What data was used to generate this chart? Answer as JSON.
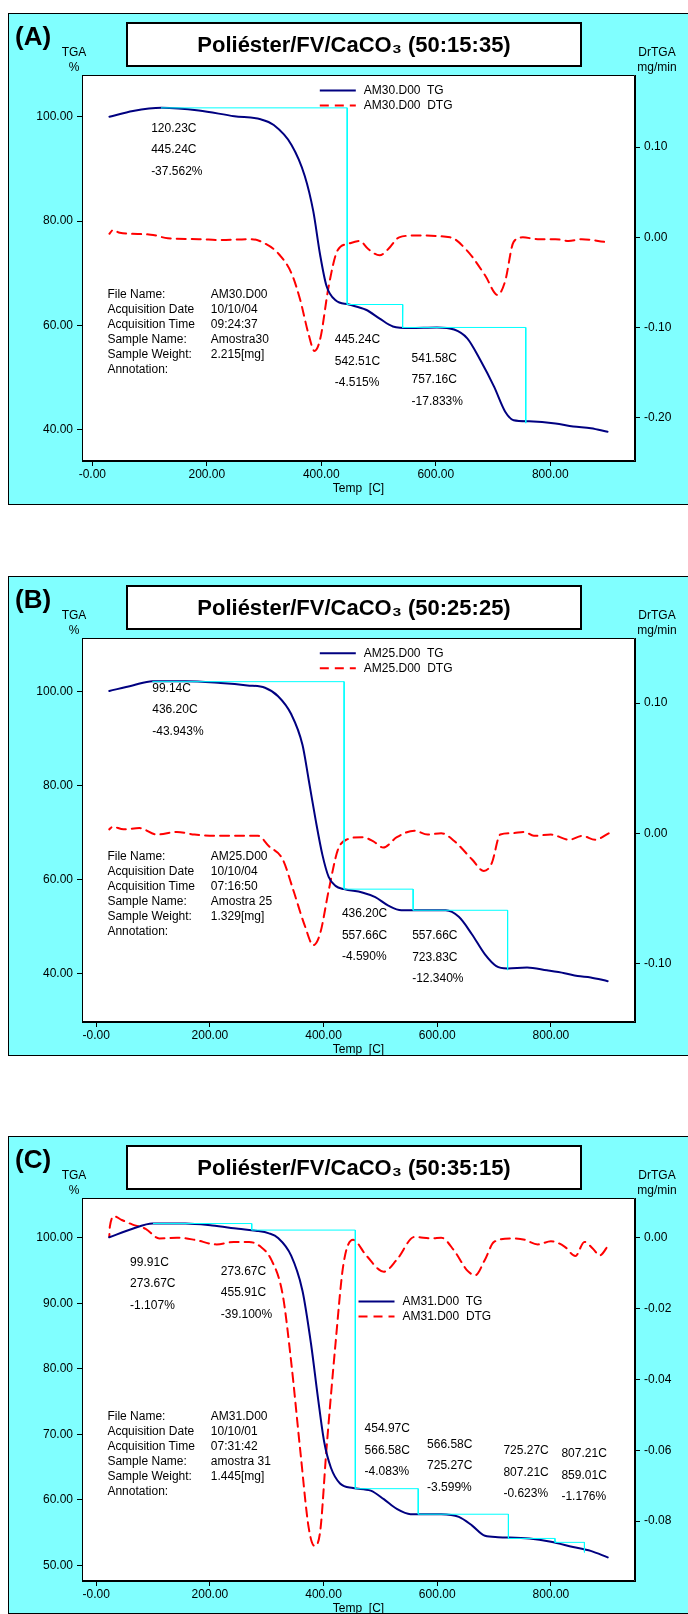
{
  "chart_data": [
    {
      "type": "line",
      "title": "Poliéster/FV/CaCO₃ (50:15:35)",
      "xlabel": "Temp  [C]",
      "ylabel": "TGA %",
      "y2label": "DrTGA mg/min",
      "legend": "top",
      "marker": "none",
      "xlim": [
        -18,
        948
      ],
      "xticks": [
        {
          "value": 0,
          "label": "-0.00"
        },
        {
          "value": 200,
          "label": "200.00"
        },
        {
          "value": 400,
          "label": "400.00"
        },
        {
          "value": 600,
          "label": "600.00"
        },
        {
          "value": 800,
          "label": "800.00"
        }
      ],
      "ylim": [
        34,
        108
      ],
      "yticks": [
        {
          "value": 40,
          "label": "40.00"
        },
        {
          "value": 60,
          "label": "60.00"
        },
        {
          "value": 80,
          "label": "80.00"
        },
        {
          "value": 100,
          "label": "100.00"
        }
      ],
      "y2lim": [
        -0.248,
        0.18
      ],
      "y2ticks": [
        {
          "value": -0.2,
          "label": "-0.20"
        },
        {
          "value": -0.1,
          "label": "-0.10"
        },
        {
          "value": 0,
          "label": "0.00"
        },
        {
          "value": 0.1,
          "label": "0.10"
        }
      ],
      "series": [
        {
          "name": "AM30.D00  TG",
          "color": "#000080",
          "line_style": "solid",
          "x": [
            30,
            71,
            121,
            186,
            248,
            294,
            317,
            348,
            371,
            386,
            398,
            409,
            425,
            448,
            478,
            502,
            525,
            555,
            602,
            632,
            655,
            678,
            702,
            721,
            736,
            763,
            809,
            840,
            871,
            900
          ],
          "values": [
            100.0,
            101.1,
            101.7,
            101.2,
            100.1,
            99.5,
            98.4,
            94.6,
            88.7,
            81.9,
            73.5,
            67.6,
            64.8,
            64.0,
            63.0,
            61.3,
            59.8,
            59.5,
            59.6,
            59.2,
            57.5,
            53.3,
            48.2,
            43.5,
            41.8,
            41.6,
            41.2,
            40.6,
            40.3,
            39.6
          ]
        },
        {
          "name": "AM30.D00  DTG",
          "color": "#ff0000",
          "line_style": "dashed",
          "axis": "y2",
          "x": [
            30,
            36,
            48,
            102,
            132,
            186,
            225,
            278,
            302,
            325,
            348,
            363,
            378,
            388,
            398,
            413,
            428,
            448,
            467,
            482,
            502,
            517,
            536,
            563,
            625,
            655,
            686,
            708,
            721,
            736,
            752,
            778,
            809,
            832,
            855,
            894
          ],
          "values": [
            0.004,
            0.008,
            0.005,
            0.003,
            -0.001,
            -0.002,
            -0.003,
            -0.002,
            -0.007,
            -0.018,
            -0.04,
            -0.069,
            -0.108,
            -0.126,
            -0.113,
            -0.054,
            -0.015,
            -0.007,
            -0.004,
            -0.013,
            -0.02,
            -0.013,
            0.0,
            0.002,
            0.0,
            -0.015,
            -0.042,
            -0.064,
            -0.049,
            -0.005,
            0.0,
            -0.002,
            -0.002,
            -0.004,
            -0.002,
            -0.005
          ]
        },
        {
          "color": "#00ffff",
          "line_style": "solid",
          "x": [
            120.23,
            445.24,
            445.24,
            542.51,
            542.51,
            541.58,
            757.16,
            757.16
          ],
          "values": [
            101.7,
            101.7,
            64.0,
            64.0,
            59.5,
            59.6,
            59.6,
            41.3
          ]
        }
      ],
      "annotations": [
        "(A)",
        "File Name:\tAM30.D00",
        "Acquisition Date\t10/10/04",
        "Acquisition Time\t09:24:37",
        "Sample Name:\tAmostra30",
        "Sample Weight:\t2.215[mg]",
        "Annotation:",
        "120.23C",
        "445.24C",
        "-37.562%",
        "445.24C",
        "542.51C",
        "-4.515%",
        "541.58C",
        "757.16C",
        "-17.833%"
      ]
    },
    {
      "type": "line",
      "title": "Poliéster/FV/CaCO₃ (50:25:25)",
      "xlabel": "Temp  [C]",
      "ylabel": "TGA %",
      "y2label": "DrTGA mg/min",
      "legend": "top",
      "marker": "none",
      "xlim": [
        -25,
        948
      ],
      "xticks": [
        {
          "value": 0,
          "label": "-0.00"
        },
        {
          "value": 200,
          "label": "200.00"
        },
        {
          "value": 400,
          "label": "400.00"
        },
        {
          "value": 600,
          "label": "600.00"
        },
        {
          "value": 800,
          "label": "800.00"
        }
      ],
      "ylim": [
        29.7,
        111.5
      ],
      "yticks": [
        {
          "value": 40,
          "label": "40.00"
        },
        {
          "value": 60,
          "label": "60.00"
        },
        {
          "value": 80,
          "label": "80.00"
        },
        {
          "value": 100,
          "label": "100.00"
        }
      ],
      "y2lim": [
        -0.145,
        0.15
      ],
      "y2ticks": [
        {
          "value": -0.1,
          "label": "-0.10"
        },
        {
          "value": 0,
          "label": "0.00"
        },
        {
          "value": 0.1,
          "label": "0.10"
        }
      ],
      "series": [
        {
          "name": "AM25.D00  TG",
          "color": "#000080",
          "line_style": "solid",
          "x": [
            23,
            64,
            99,
            157,
            219,
            266,
            297,
            320,
            343,
            363,
            374,
            386,
            398,
            409,
            421,
            436,
            468,
            491,
            514,
            537,
            575,
            615,
            638,
            661,
            684,
            704,
            723,
            758,
            793,
            824,
            847,
            870,
            900
          ],
          "values": [
            100.2,
            101.4,
            102.3,
            102.3,
            101.9,
            101.4,
            100.9,
            99.1,
            95.3,
            88.7,
            81.2,
            72.8,
            65.3,
            60.6,
            58.7,
            58.0,
            57.3,
            56.3,
            54.5,
            53.5,
            53.5,
            53.5,
            52.1,
            48.4,
            44.1,
            41.6,
            41.1,
            41.3,
            40.7,
            40.1,
            39.5,
            39.2,
            38.4
          ]
        },
        {
          "name": "AM25.D00  DTG",
          "color": "#ff0000",
          "line_style": "dashed",
          "axis": "y2",
          "x": [
            23,
            29,
            48,
            76,
            107,
            142,
            173,
            219,
            266,
            285,
            304,
            328,
            347,
            367,
            382,
            394,
            409,
            425,
            440,
            468,
            487,
            505,
            529,
            560,
            583,
            607,
            630,
            661,
            682,
            696,
            711,
            731,
            754,
            770,
            800,
            832,
            855,
            878,
            902
          ],
          "values": [
            0.003,
            0.005,
            0.003,
            0.004,
            -0.001,
            0.001,
            -0.001,
            -0.002,
            -0.002,
            -0.002,
            -0.01,
            -0.02,
            -0.044,
            -0.071,
            -0.086,
            -0.077,
            -0.044,
            -0.013,
            -0.005,
            -0.003,
            -0.006,
            -0.011,
            -0.003,
            0.002,
            -0.001,
            0.0,
            -0.006,
            -0.02,
            -0.029,
            -0.023,
            -0.001,
            0.0,
            0.001,
            -0.002,
            -0.001,
            -0.005,
            -0.002,
            -0.005,
            0.0
          ]
        },
        {
          "color": "#00ffff",
          "line_style": "solid",
          "x": [
            99.14,
            436.2,
            436.2,
            557.66,
            557.66,
            723.83,
            723.83
          ],
          "values": [
            102.2,
            102.2,
            58.0,
            58.0,
            53.5,
            53.5,
            40.8
          ]
        }
      ],
      "annotations": [
        "(B)",
        "File Name:\tAM25.D00",
        "Acquisition Date\t10/10/04",
        "Acquisition Time\t07:16:50",
        "Sample Name:\tAmostra 25",
        "Sample Weight:\t1.329[mg]",
        "Annotation:",
        "99.14C",
        "436.20C",
        "-43.943%",
        "436.20C",
        "557.66C",
        "-4.590%",
        "557.66C",
        "723.83C",
        "-12.340%"
      ]
    },
    {
      "type": "line",
      "title": "Poliéster/FV/CaCO₃ (50:35:15)",
      "xlabel": "Temp  [C]",
      "ylabel": "TGA %",
      "y2label": "DrTGA mg/min",
      "legend": "center",
      "marker": "none",
      "xlim": [
        -25,
        948
      ],
      "xticks": [
        {
          "value": 0,
          "label": "-0.00"
        },
        {
          "value": 200,
          "label": "200.00"
        },
        {
          "value": 400,
          "label": "400.00"
        },
        {
          "value": 600,
          "label": "600.00"
        },
        {
          "value": 800,
          "label": "800.00"
        }
      ],
      "ylim": [
        47.6,
        106.1
      ],
      "yticks": [
        {
          "value": 50,
          "label": "50.00"
        },
        {
          "value": 60,
          "label": "60.00"
        },
        {
          "value": 70,
          "label": "70.00"
        },
        {
          "value": 80,
          "label": "80.00"
        },
        {
          "value": 90,
          "label": "90.00"
        },
        {
          "value": 100,
          "label": "100.00"
        }
      ],
      "y2lim": [
        -0.0969,
        0.0112
      ],
      "y2ticks": [
        {
          "value": -0.08,
          "label": "-0.08"
        },
        {
          "value": -0.06,
          "label": "-0.06"
        },
        {
          "value": -0.04,
          "label": "-0.04"
        },
        {
          "value": -0.02,
          "label": "-0.02"
        },
        {
          "value": 0,
          "label": "0.00"
        }
      ],
      "series": [
        {
          "name": "AM31.D00  TG",
          "color": "#000080",
          "line_style": "solid",
          "x": [
            23,
            64,
            99,
            157,
            204,
            250,
            281,
            304,
            320,
            343,
            363,
            378,
            390,
            401,
            413,
            429,
            452,
            483,
            506,
            529,
            553,
            607,
            638,
            661,
            684,
            707,
            762,
            800,
            839,
            870,
            900
          ],
          "values": [
            100.1,
            101.4,
            102.2,
            102.2,
            101.9,
            101.4,
            101.1,
            100.7,
            100.0,
            97.3,
            91.9,
            83.8,
            75.7,
            68.9,
            64.9,
            62.5,
            61.8,
            61.4,
            60.1,
            58.6,
            57.8,
            57.8,
            57.4,
            56.1,
            54.5,
            54.3,
            54.1,
            53.6,
            52.8,
            52.2,
            51.2
          ]
        },
        {
          "name": "AM31.D00  DTG",
          "color": "#ff0000",
          "line_style": "dashed",
          "axis": "y2",
          "x": [
            23,
            24,
            32,
            45,
            64,
            87,
            111,
            142,
            173,
            212,
            242,
            269,
            289,
            308,
            328,
            343,
            359,
            374,
            384,
            394,
            405,
            421,
            435,
            452,
            475,
            506,
            529,
            560,
            591,
            607,
            630,
            653,
            667,
            684,
            700,
            731,
            754,
            777,
            800,
            824,
            843,
            859,
            874,
            886,
            902
          ],
          "values": [
            0.0002,
            0.0031,
            0.006,
            0.005,
            0.0037,
            0.0025,
            -0.0002,
            0.0,
            -0.0006,
            -0.0019,
            -0.0012,
            -0.0012,
            -0.0025,
            -0.0062,
            -0.016,
            -0.035,
            -0.06,
            -0.082,
            -0.087,
            -0.083,
            -0.06,
            -0.03,
            -0.0075,
            -0.0006,
            -0.005,
            -0.0096,
            -0.0062,
            0.0002,
            -0.0002,
            0.0,
            -0.0037,
            -0.0093,
            -0.0106,
            -0.0062,
            -0.0012,
            -0.0002,
            -0.0006,
            -0.0019,
            -0.001,
            -0.0025,
            -0.0052,
            -0.0012,
            -0.0031,
            -0.005,
            -0.0019
          ]
        },
        {
          "color": "#00ffff",
          "line_style": "solid",
          "x": [
            99.91,
            273.67,
            273.67,
            455.91,
            455.91,
            566.58,
            566.58,
            725.27,
            725.27,
            807.21,
            807.21,
            859.01,
            859.01
          ],
          "values": [
            102.2,
            102.2,
            101.2,
            101.2,
            61.7,
            61.7,
            57.8,
            57.8,
            54.1,
            54.1,
            53.5,
            53.5,
            52.0
          ]
        }
      ],
      "annotations": [
        "(C)",
        "File Name:\tAM31.D00",
        "Acquisition Date\t10/10/01",
        "Acquisition Time\t07:31:42",
        "Sample Name:\tamostra 31",
        "Sample Weight:\t1.445[mg]",
        "Annotation:",
        "99.91C",
        "273.67C",
        "-1.107%",
        "273.67C",
        "455.91C",
        "-39.100%",
        "454.97C",
        "566.58C",
        "-4.083%",
        "566.58C",
        "725.27C",
        "-3.599%",
        "725.27C",
        "807.21C",
        "-0.623%",
        "807.21C",
        "859.01C",
        "-1.176%"
      ]
    }
  ]
}
